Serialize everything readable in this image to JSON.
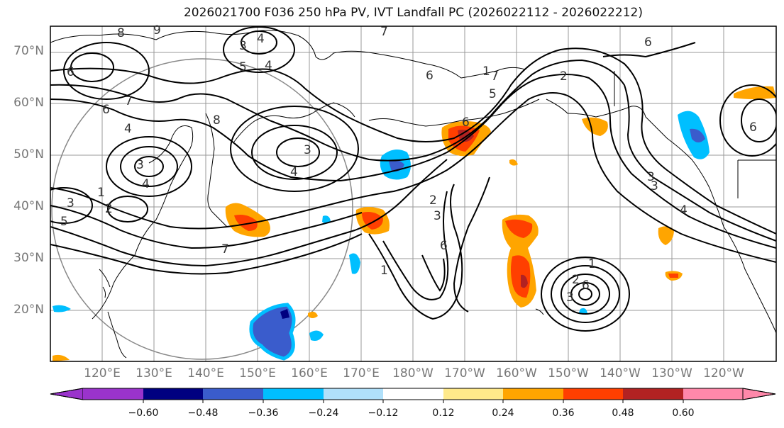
{
  "title": "2026021700 F036 250 hPa PV, IVT Landfall PC (2026022112 - 2026022212)",
  "lat_labels": [
    "70°N",
    "60°N",
    "50°N",
    "40°N",
    "30°N",
    "20°N"
  ],
  "lon_labels": [
    "120°E",
    "130°E",
    "140°E",
    "150°E",
    "160°E",
    "170°E",
    "180°W",
    "170°W",
    "160°W",
    "150°W",
    "140°W",
    "130°W",
    "120°W"
  ],
  "colorbar": {
    "ticks": [
      "−0.60",
      "−0.48",
      "−0.36",
      "−0.24",
      "−0.12",
      "0.12",
      "0.24",
      "0.36",
      "0.48",
      "0.60"
    ],
    "colors": [
      "#9a33cc",
      "#000080",
      "#3a5ccc",
      "#00bfff",
      "#b0e0fa",
      "#ffffff",
      "#ffe98a",
      "#ffa500",
      "#ff3f00",
      "#b22222",
      "#ff88aa"
    ]
  },
  "contour_labels": [
    "8",
    "9",
    "4",
    "3",
    "4",
    "5",
    "7",
    "6",
    "6",
    "7",
    "4",
    "3",
    "4",
    "3",
    "4",
    "1",
    "2",
    "3",
    "5",
    "7",
    "8",
    "6",
    "1",
    "2",
    "7",
    "6",
    "3",
    "6",
    "1",
    "2",
    "3",
    "6",
    "5",
    "6",
    "3",
    "4",
    "2",
    "1",
    "3",
    "6"
  ],
  "colors": {
    "contour": "#000000",
    "grid": "#888888",
    "coast": "#000000"
  }
}
